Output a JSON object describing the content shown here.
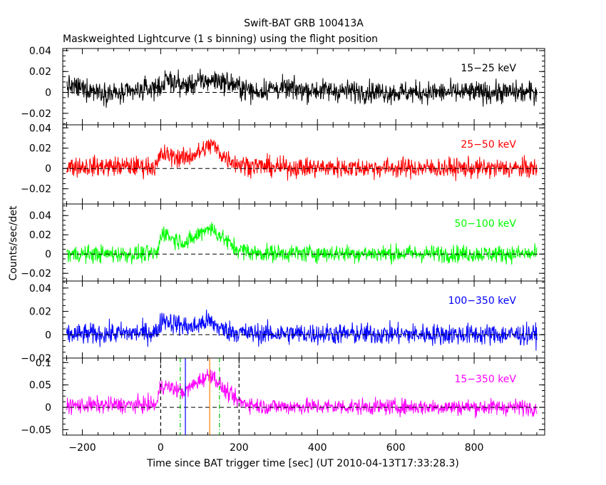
{
  "chart_data": {
    "type": "line",
    "title": "Swift-BAT GRB 100413A",
    "subtitle": "Maskweighted Lightcurve (1 s binning) using the flight position",
    "xlabel": "Time since BAT trigger time [sec] (UT 2010-04-13T17:33:28.3)",
    "ylabel": "Counts/sec/det",
    "xlim": [
      -250,
      980
    ],
    "x_ticks": [
      -200,
      0,
      200,
      400,
      600,
      800
    ],
    "x_tick_labels": [
      "−200",
      "0",
      "200",
      "400",
      "600",
      "800"
    ],
    "data_range": [
      -240,
      960
    ],
    "zero_line_style": "dashed",
    "grid": false,
    "panels": [
      {
        "name": "15−25 keV",
        "color": "#000000",
        "ylim": [
          -0.031,
          0.042
        ],
        "y_ticks": [
          -0.02,
          0,
          0.02,
          0.04
        ],
        "y_tick_labels": [
          "−0.02",
          "0",
          "0.02",
          "0.04"
        ],
        "noise": 0.0075,
        "profile": [
          [
            -240,
            0.006
          ],
          [
            -100,
            -0.002
          ],
          [
            0,
            0.006
          ],
          [
            20,
            0.012
          ],
          [
            60,
            0.006
          ],
          [
            100,
            0.01
          ],
          [
            140,
            0.012
          ],
          [
            180,
            0.008
          ],
          [
            240,
            0.0
          ],
          [
            280,
            0.004
          ],
          [
            400,
            0.002
          ],
          [
            600,
            0.0
          ],
          [
            960,
            0.0
          ]
        ]
      },
      {
        "name": "25−50 keV",
        "color": "#ff0000",
        "ylim": [
          -0.035,
          0.043
        ],
        "y_ticks": [
          -0.02,
          0,
          0.02,
          0.04
        ],
        "y_tick_labels": [
          "−0.02",
          "0",
          "0.02",
          "0.04"
        ],
        "noise": 0.007,
        "profile": [
          [
            -240,
            0.002
          ],
          [
            -10,
            0.002
          ],
          [
            0,
            0.014
          ],
          [
            60,
            0.01
          ],
          [
            100,
            0.016
          ],
          [
            130,
            0.024
          ],
          [
            160,
            0.012
          ],
          [
            200,
            0.004
          ],
          [
            300,
            0.001
          ],
          [
            960,
            0.0
          ]
        ]
      },
      {
        "name": "50−100 keV",
        "color": "#00ff00",
        "ylim": [
          -0.028,
          0.052
        ],
        "y_ticks": [
          -0.02,
          0,
          0.02,
          0.04
        ],
        "y_tick_labels": [
          "−0.02",
          "0",
          "0.02",
          "0.04"
        ],
        "noise": 0.0065,
        "profile": [
          [
            -240,
            0.0
          ],
          [
            -10,
            0.0
          ],
          [
            5,
            0.024
          ],
          [
            30,
            0.016
          ],
          [
            70,
            0.012
          ],
          [
            120,
            0.028
          ],
          [
            150,
            0.02
          ],
          [
            190,
            0.006
          ],
          [
            240,
            0.001
          ],
          [
            960,
            0.0
          ]
        ]
      },
      {
        "name": "100−350 keV",
        "color": "#0000ff",
        "ylim": [
          -0.02,
          0.046
        ],
        "y_ticks": [
          -0.02,
          0,
          0.02,
          0.04
        ],
        "y_tick_labels": [
          "−0.02",
          "0",
          "0.02",
          "0.04"
        ],
        "noise": 0.0065,
        "profile": [
          [
            -240,
            0.0
          ],
          [
            -10,
            0.002
          ],
          [
            5,
            0.014
          ],
          [
            30,
            0.01
          ],
          [
            80,
            0.006
          ],
          [
            120,
            0.012
          ],
          [
            160,
            0.004
          ],
          [
            220,
            0.001
          ],
          [
            960,
            0.0
          ]
        ]
      },
      {
        "name": "15−350 keV",
        "color": "#ff00ff",
        "ylim": [
          -0.062,
          0.11
        ],
        "y_ticks": [
          -0.05,
          0,
          0.05,
          0.1
        ],
        "y_tick_labels": [
          "−0.05",
          "0",
          "0.05",
          "0.1"
        ],
        "noise": 0.013,
        "profile": [
          [
            -240,
            0.004
          ],
          [
            -10,
            0.006
          ],
          [
            0,
            0.05
          ],
          [
            60,
            0.035
          ],
          [
            100,
            0.06
          ],
          [
            130,
            0.075
          ],
          [
            160,
            0.04
          ],
          [
            200,
            0.012
          ],
          [
            260,
            0.002
          ],
          [
            960,
            0.0
          ]
        ],
        "markers": [
          {
            "x": 0,
            "color": "#000000",
            "style": "dashed"
          },
          {
            "x": 200,
            "color": "#000000",
            "style": "dashed"
          },
          {
            "x": 50,
            "color": "#00c000",
            "style": "dashdot"
          },
          {
            "x": 150,
            "color": "#00c000",
            "style": "dashdot"
          },
          {
            "x": 63,
            "color": "#0000ff",
            "style": "solid"
          },
          {
            "x": 125,
            "color": "#ff8000",
            "style": "solid"
          }
        ]
      }
    ]
  }
}
